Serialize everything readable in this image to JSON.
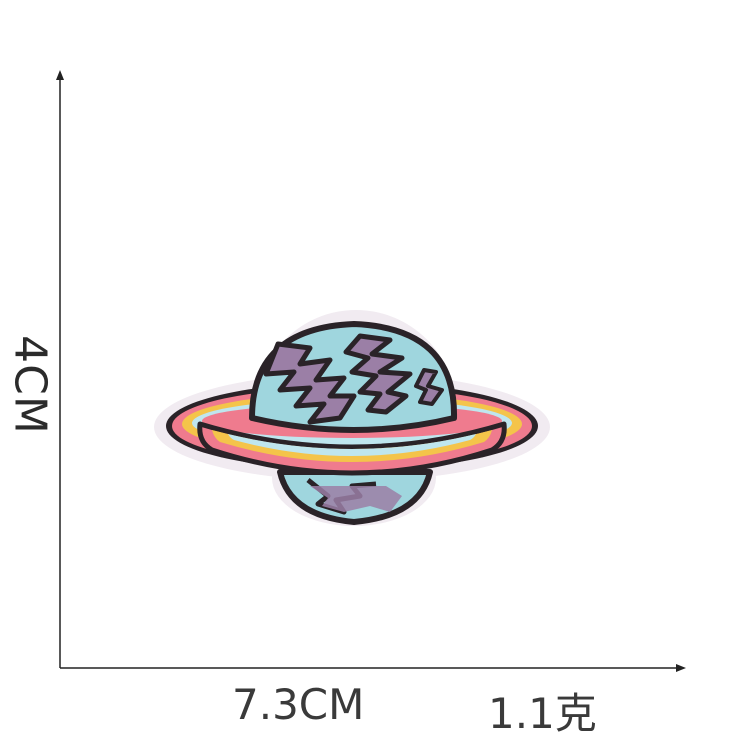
{
  "labels": {
    "height": "4CM",
    "width": "7.3CM",
    "weight": "1.1克"
  },
  "colors": {
    "axis": "#222222",
    "outline": "#2a2328",
    "border": "#efe8ef",
    "planet_blue": "#9fd6de",
    "planet_purple": "#9b7fa6",
    "ring_pink": "#ef7b8e",
    "ring_yellow": "#f4c44a",
    "ring_light_blue": "#bfe6ee"
  },
  "patch": {
    "subject": "planet-with-ring-embroidered-patch"
  }
}
